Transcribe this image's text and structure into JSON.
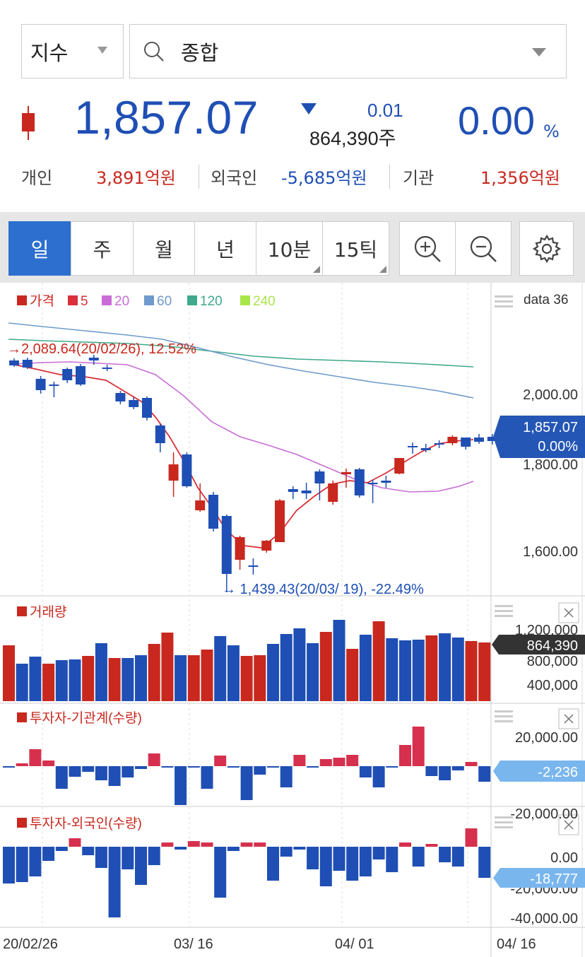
{
  "selector": {
    "index_type": "지수",
    "search_value": "종합"
  },
  "quote": {
    "price": "1,857.07",
    "change": "0.01",
    "volume": "864,390주",
    "change_pct": "0.00",
    "pct_unit": "%"
  },
  "investors": [
    {
      "label": "개인",
      "value": "3,891억원",
      "color": "#c8281e"
    },
    {
      "label": "외국인",
      "value": "-5,685억원",
      "color": "#1f4fb4"
    },
    {
      "label": "기관",
      "value": "1,356억원",
      "color": "#c8281e"
    }
  ],
  "period_tabs": [
    {
      "label": "일",
      "active": true
    },
    {
      "label": "주",
      "active": false
    },
    {
      "label": "월",
      "active": false
    },
    {
      "label": "년",
      "active": false
    },
    {
      "label": "10분",
      "active": false
    },
    {
      "label": "15틱",
      "active": false
    }
  ],
  "price_chart": {
    "legend": [
      {
        "label": "가격",
        "color": "#c8281e"
      },
      {
        "label": "5",
        "color": "#d9303a"
      },
      {
        "label": "20",
        "color": "#c86dd6"
      },
      {
        "label": "60",
        "color": "#6f9acb"
      },
      {
        "label": "120",
        "color": "#3fa98c"
      },
      {
        "label": "240",
        "color": "#a9e64a"
      }
    ],
    "data_label": "data 36",
    "high_note": "→2,089.64(20/02/26),  12.52%",
    "low_note": "→ 1,439.43(20/03/ 19),  -22.49%",
    "y_ticks": [
      "2,000.00",
      "1,800.00",
      "1,600.00"
    ],
    "current_price": "1,857.07",
    "current_pct": "0.00%"
  },
  "volume_panel": {
    "title": "거래량",
    "y_ticks": [
      "1,200,000",
      "800,000",
      "400,000"
    ],
    "current": "864,390"
  },
  "inst_panel": {
    "title": "투자자-기관계(수량)",
    "y_ticks": [
      "20,000.00",
      "-20,000.00"
    ],
    "current": "-2,236"
  },
  "foreign_panel": {
    "title": "투자자-외국인(수량)",
    "y_ticks": [
      "0.00",
      "-20,000.00",
      "-40,000.00"
    ],
    "current": "-18,777"
  },
  "x_axis": [
    "20/02/26",
    "03/ 16",
    "04/ 01",
    "04/ 16"
  ],
  "colors": {
    "up": "#c8281e",
    "down": "#1f4fb4",
    "accent": "#2d6fcf"
  }
}
